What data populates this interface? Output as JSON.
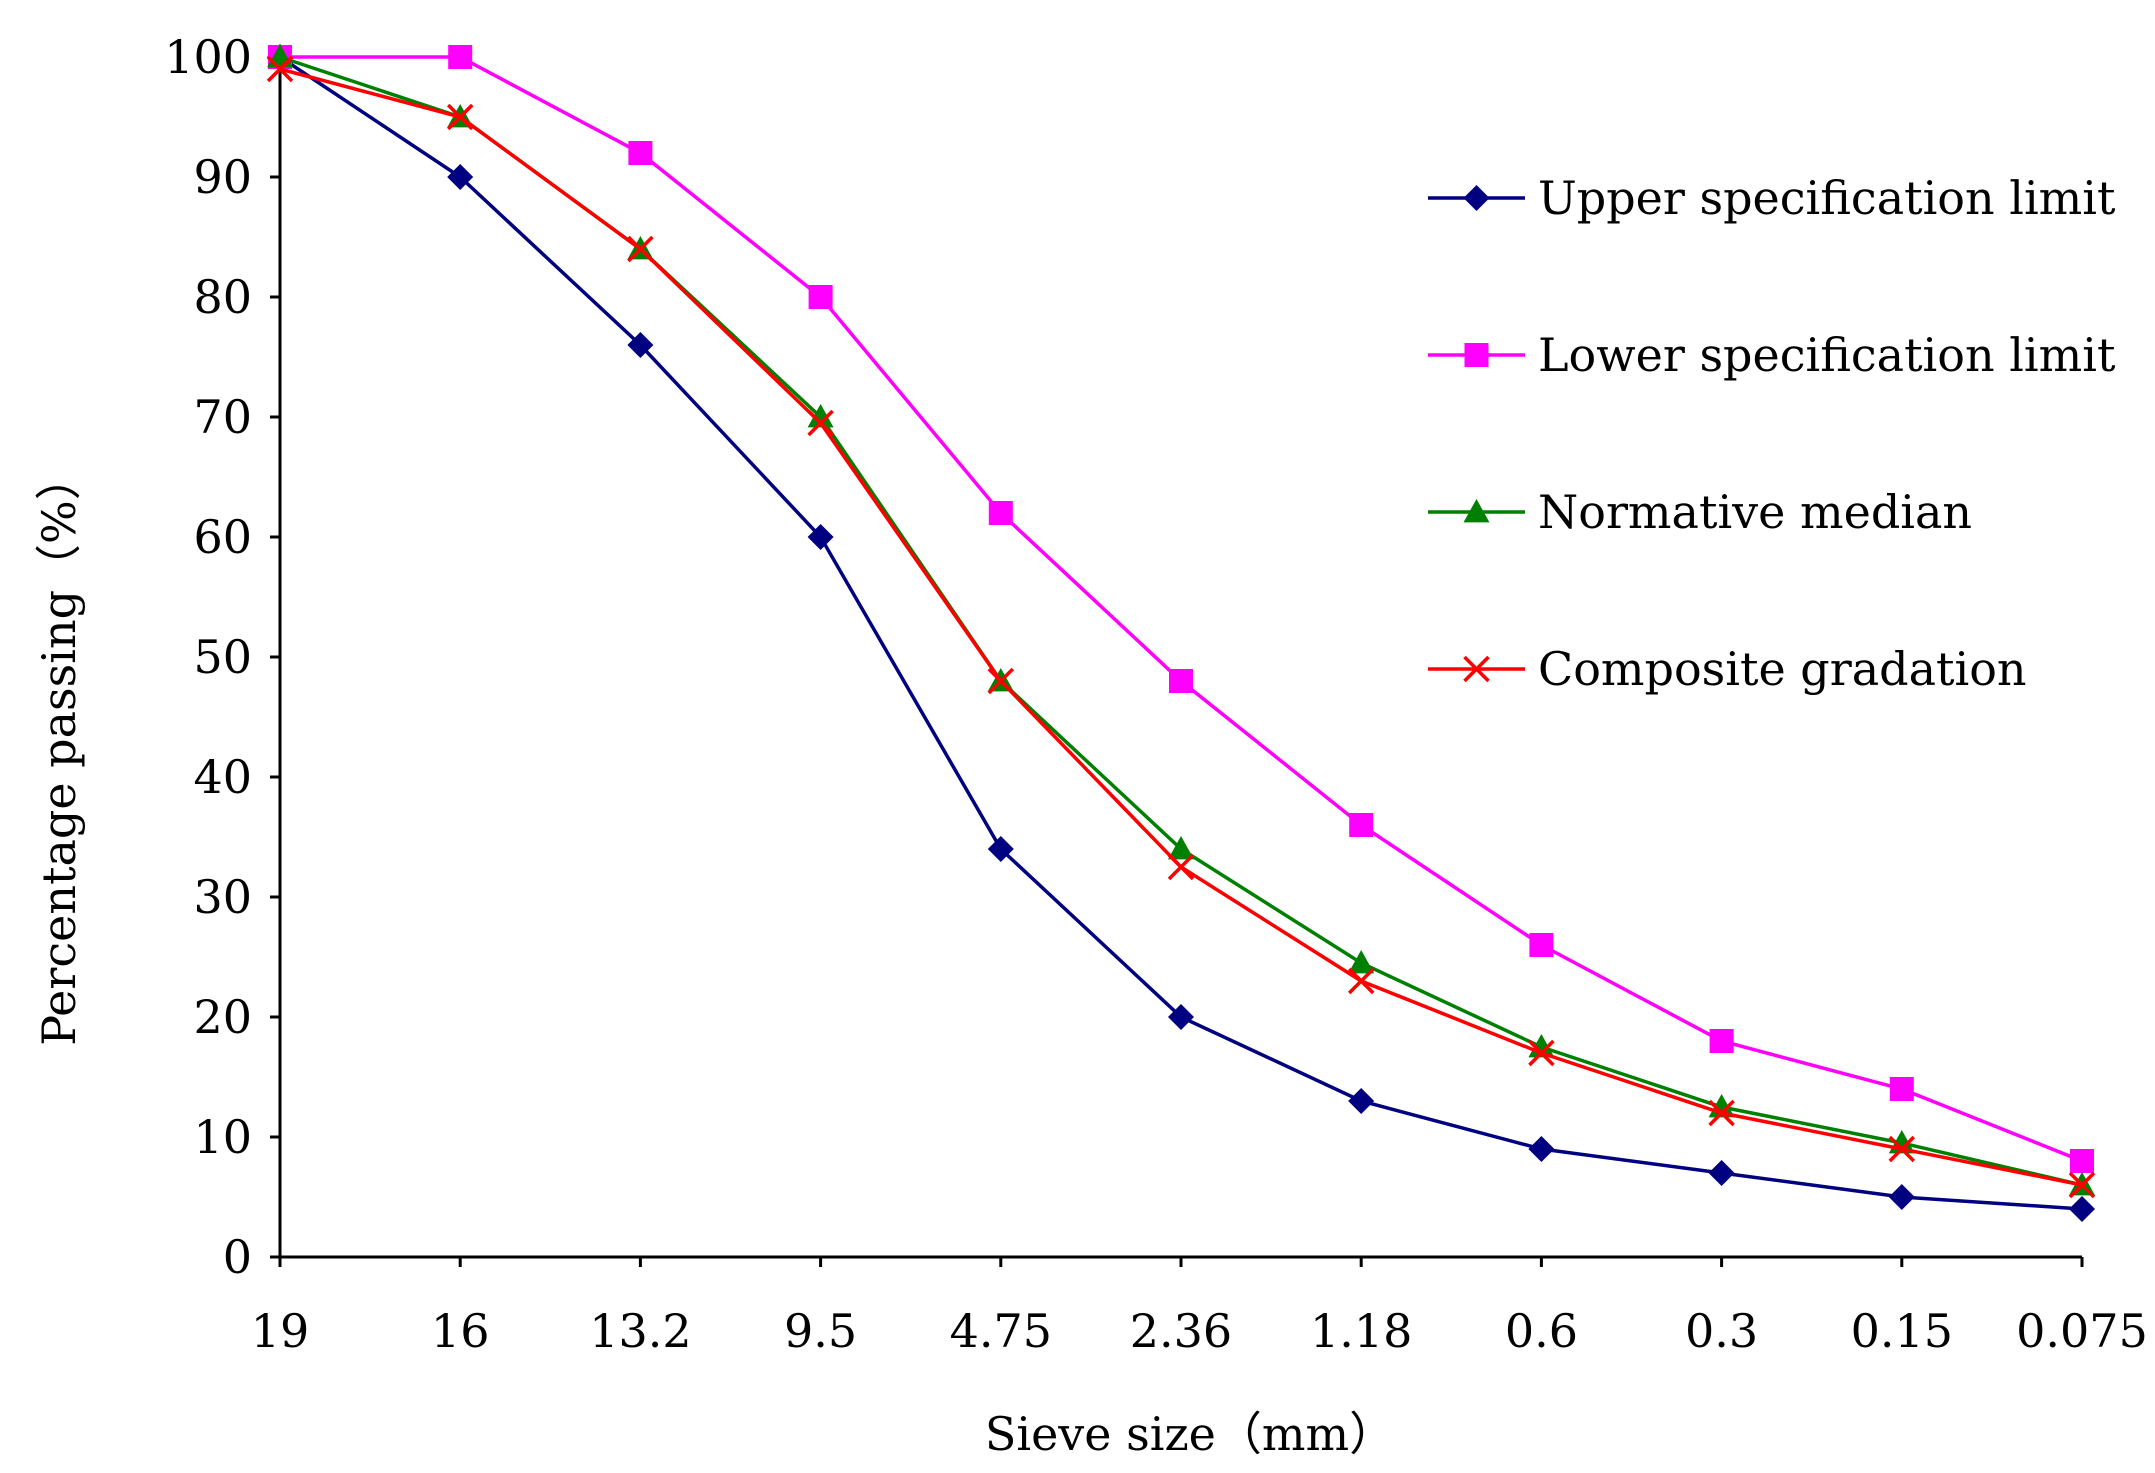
{
  "chart_data": {
    "type": "line",
    "title": "",
    "xlabel": "Sieve size（mm）",
    "ylabel": "Percentage passing（%）",
    "categories": [
      "19",
      "16",
      "13.2",
      "9.5",
      "4.75",
      "2.36",
      "1.18",
      "0.6",
      "0.3",
      "0.15",
      "0.075"
    ],
    "ylim": [
      0,
      100
    ],
    "yticks": [
      0,
      10,
      20,
      30,
      40,
      50,
      60,
      70,
      80,
      90,
      100
    ],
    "grid": false,
    "legend_position": "top-right",
    "series": [
      {
        "name": "Upper specification limit",
        "color": "#000080",
        "marker": "diamond",
        "values": [
          100,
          90,
          76,
          60,
          34,
          20,
          13,
          9,
          7,
          5,
          4
        ]
      },
      {
        "name": "Lower specification limit",
        "color": "#ff00ff",
        "marker": "square",
        "values": [
          100,
          100,
          92,
          80,
          62,
          48,
          36,
          26,
          18,
          14,
          8
        ]
      },
      {
        "name": "Normative median",
        "color": "#008000",
        "marker": "triangle",
        "values": [
          100,
          95,
          84,
          70,
          48,
          34,
          24.5,
          17.5,
          12.5,
          9.5,
          6
        ]
      },
      {
        "name": "Composite gradation",
        "color": "#ff0000",
        "marker": "x",
        "values": [
          99,
          95,
          84,
          69.5,
          48,
          32.5,
          23,
          17,
          12,
          9,
          6
        ]
      }
    ]
  }
}
